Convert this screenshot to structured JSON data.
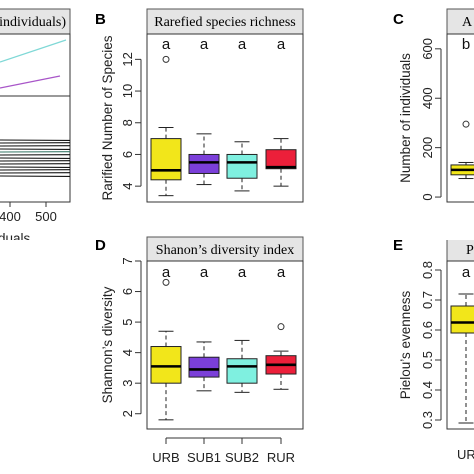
{
  "chart_data": [
    {
      "panel": "A",
      "type": "line",
      "title": "individuals)",
      "xlabel": "duals",
      "x_ticks": [
        "400",
        "500"
      ],
      "series_colors": [
        "#7fd8d6",
        "#a855c8",
        "#000000"
      ]
    },
    {
      "panel": "B",
      "type": "boxplot",
      "title": "Rarefied species richness",
      "ylabel": "Rarified Number of Species",
      "y_ticks": [
        "4",
        "6",
        "8",
        "10",
        "12"
      ],
      "ylim": [
        3.0,
        13.6
      ],
      "categories": [
        "URB",
        "SUB1",
        "SUB2",
        "RUR"
      ],
      "significance": [
        "a",
        "a",
        "a",
        "a"
      ],
      "boxes": [
        {
          "group": "URB",
          "whisker_low": 3.4,
          "q1": 4.4,
          "median": 5.0,
          "q3": 7.0,
          "whisker_high": 7.7,
          "outliers": [
            12.0
          ]
        },
        {
          "group": "SUB1",
          "whisker_low": 4.1,
          "q1": 4.8,
          "median": 5.5,
          "q3": 6.0,
          "whisker_high": 7.3,
          "outliers": []
        },
        {
          "group": "SUB2",
          "whisker_low": 3.7,
          "q1": 4.5,
          "median": 5.5,
          "q3": 6.0,
          "whisker_high": 6.8,
          "outliers": []
        },
        {
          "group": "RUR",
          "whisker_low": 4.0,
          "q1": 5.1,
          "median": 5.2,
          "q3": 6.3,
          "whisker_high": 7.0,
          "outliers": []
        }
      ]
    },
    {
      "panel": "C",
      "type": "boxplot",
      "title": "A",
      "ylabel": "Number of individuals",
      "y_ticks": [
        "0",
        "200",
        "400",
        "600"
      ],
      "ylim": [
        -20,
        660
      ],
      "significance": [
        "b"
      ],
      "boxes": [
        {
          "group": "URB",
          "whisker_low": 75,
          "q1": 90,
          "median": 110,
          "q3": 130,
          "whisker_high": 140,
          "outliers": [
            295
          ]
        }
      ]
    },
    {
      "panel": "D",
      "type": "boxplot",
      "title": "Shanon’s diversity index",
      "ylabel": "Shannon’s diversity",
      "y_ticks": [
        "2",
        "3",
        "4",
        "5",
        "6",
        "7"
      ],
      "ylim": [
        1.5,
        7.0
      ],
      "categories": [
        "URB",
        "SUB1",
        "SUB2",
        "RUR"
      ],
      "significance": [
        "a",
        "a",
        "a",
        "a"
      ],
      "boxes": [
        {
          "group": "URB",
          "whisker_low": 1.8,
          "q1": 3.0,
          "median": 3.55,
          "q3": 4.2,
          "whisker_high": 4.7,
          "outliers": [
            6.3
          ]
        },
        {
          "group": "SUB1",
          "whisker_low": 2.75,
          "q1": 3.2,
          "median": 3.45,
          "q3": 3.85,
          "whisker_high": 4.35,
          "outliers": []
        },
        {
          "group": "SUB2",
          "whisker_low": 2.7,
          "q1": 3.0,
          "median": 3.55,
          "q3": 3.8,
          "whisker_high": 4.4,
          "outliers": []
        },
        {
          "group": "RUR",
          "whisker_low": 2.8,
          "q1": 3.3,
          "median": 3.6,
          "q3": 3.9,
          "whisker_high": 4.05,
          "outliers": [
            4.85
          ]
        }
      ]
    },
    {
      "panel": "E",
      "type": "boxplot",
      "title": "P",
      "ylabel": "Pielou’s evenness",
      "y_ticks": [
        "0.3",
        "0.4",
        "0.5",
        "0.6",
        "0.7",
        "0.8"
      ],
      "ylim": [
        0.27,
        0.83
      ],
      "categories": [
        "UR"
      ],
      "significance": [
        "a"
      ],
      "boxes": [
        {
          "group": "URB",
          "whisker_low": 0.29,
          "q1": 0.59,
          "median": 0.625,
          "q3": 0.68,
          "whisker_high": 0.72,
          "outliers": []
        }
      ]
    }
  ],
  "group_colors": {
    "URB": "#f2e61a",
    "SUB1": "#7b3fd9",
    "SUB2": "#7ff0e0",
    "RUR": "#ec1f3a"
  },
  "strip_fill": "#e5e5e5"
}
